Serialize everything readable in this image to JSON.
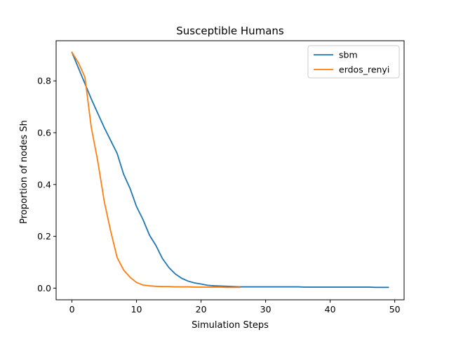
{
  "chart_data": {
    "type": "line",
    "title": "Susceptible Humans",
    "xlabel": "Simulation Steps",
    "ylabel": "Proportion of nodes Sh",
    "xlim": [
      -2.45,
      51.45
    ],
    "ylim": [
      -0.045,
      0.955
    ],
    "xticks": [
      0,
      10,
      20,
      30,
      40,
      50
    ],
    "xtick_labels": [
      "0",
      "10",
      "20",
      "30",
      "40",
      "50"
    ],
    "yticks": [
      0.0,
      0.2,
      0.4,
      0.6,
      0.8
    ],
    "ytick_labels": [
      "0.0",
      "0.2",
      "0.4",
      "0.6",
      "0.8"
    ],
    "grid": false,
    "legend_position": "top-right",
    "series": [
      {
        "name": "sbm",
        "color": "#1f77b4",
        "x": [
          0,
          1,
          2,
          3,
          4,
          5,
          6,
          7,
          8,
          9,
          10,
          11,
          12,
          13,
          14,
          15,
          16,
          17,
          18,
          19,
          20,
          21,
          22,
          23,
          24,
          25,
          26,
          27,
          28,
          29,
          30,
          31,
          32,
          33,
          34,
          35,
          36,
          37,
          38,
          39,
          40,
          41,
          42,
          43,
          44,
          45,
          46,
          47,
          48,
          49
        ],
        "y": [
          0.91,
          0.85,
          0.79,
          0.73,
          0.675,
          0.62,
          0.57,
          0.52,
          0.44,
          0.385,
          0.315,
          0.265,
          0.205,
          0.165,
          0.115,
          0.08,
          0.055,
          0.038,
          0.027,
          0.02,
          0.016,
          0.011,
          0.009,
          0.008,
          0.007,
          0.006,
          0.005,
          0.005,
          0.005,
          0.005,
          0.005,
          0.005,
          0.005,
          0.005,
          0.005,
          0.005,
          0.004,
          0.004,
          0.004,
          0.004,
          0.004,
          0.004,
          0.004,
          0.004,
          0.004,
          0.004,
          0.004,
          0.003,
          0.003,
          0.003
        ]
      },
      {
        "name": "erdos_renyi",
        "color": "#ff7f0e",
        "x": [
          0,
          1,
          2,
          3,
          4,
          5,
          6,
          7,
          8,
          9,
          10,
          11,
          12,
          13,
          14,
          15,
          16,
          17,
          18,
          19,
          20,
          21,
          22,
          23,
          24,
          25,
          26
        ],
        "y": [
          0.91,
          0.87,
          0.815,
          0.62,
          0.49,
          0.335,
          0.22,
          0.118,
          0.07,
          0.042,
          0.022,
          0.012,
          0.009,
          0.007,
          0.006,
          0.006,
          0.005,
          0.005,
          0.005,
          0.004,
          0.004,
          0.004,
          0.004,
          0.004,
          0.003,
          0.003,
          0.003
        ]
      }
    ]
  }
}
